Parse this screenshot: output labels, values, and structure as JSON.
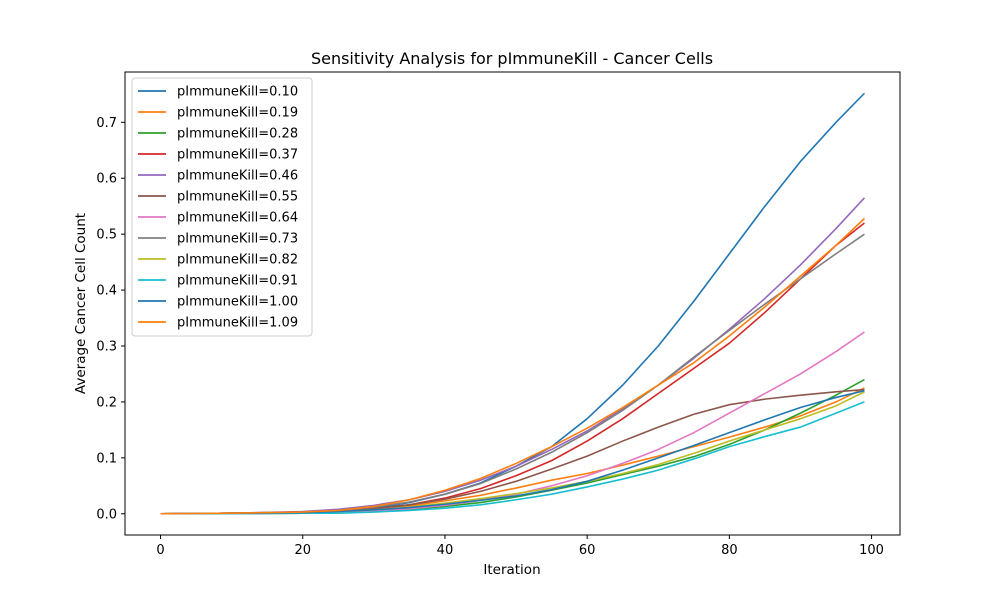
{
  "chart_data": {
    "type": "line",
    "title": "Sensitivity Analysis for pImmuneKill - Cancer Cells",
    "xlabel": "Iteration",
    "ylabel": "Average Cancer Cell Count",
    "xlim": [
      -5,
      104
    ],
    "ylim": [
      -0.038,
      0.79
    ],
    "xticks": [
      0,
      20,
      40,
      60,
      80,
      100
    ],
    "yticks": [
      0.0,
      0.1,
      0.2,
      0.3,
      0.4,
      0.5,
      0.6,
      0.7
    ],
    "grid": false,
    "legend_position": "top-left",
    "x": [
      0,
      10,
      20,
      25,
      30,
      35,
      40,
      45,
      50,
      55,
      60,
      65,
      70,
      75,
      80,
      85,
      90,
      95,
      99
    ],
    "series": [
      {
        "name": "pImmuneKill=0.10",
        "color": "#1f77b4",
        "values": [
          0,
          0.001,
          0.002,
          0.004,
          0.01,
          0.02,
          0.035,
          0.055,
          0.085,
          0.12,
          0.17,
          0.23,
          0.3,
          0.38,
          0.465,
          0.55,
          0.63,
          0.7,
          0.752
        ]
      },
      {
        "name": "pImmuneKill=0.19",
        "color": "#ff7f0e",
        "values": [
          0,
          0.001,
          0.002,
          0.004,
          0.008,
          0.014,
          0.023,
          0.033,
          0.046,
          0.06,
          0.072,
          0.087,
          0.103,
          0.12,
          0.137,
          0.155,
          0.175,
          0.2,
          0.225
        ]
      },
      {
        "name": "pImmuneKill=0.28",
        "color": "#2ca02c",
        "values": [
          0,
          0.0,
          0.001,
          0.002,
          0.004,
          0.008,
          0.013,
          0.02,
          0.03,
          0.042,
          0.055,
          0.07,
          0.085,
          0.102,
          0.124,
          0.15,
          0.18,
          0.212,
          0.24
        ]
      },
      {
        "name": "pImmuneKill=0.37",
        "color": "#d62728",
        "values": [
          0,
          0.001,
          0.002,
          0.004,
          0.009,
          0.016,
          0.028,
          0.045,
          0.068,
          0.095,
          0.13,
          0.17,
          0.215,
          0.26,
          0.305,
          0.36,
          0.42,
          0.48,
          0.52
        ]
      },
      {
        "name": "pImmuneKill=0.46",
        "color": "#9467bd",
        "values": [
          0,
          0.001,
          0.004,
          0.008,
          0.015,
          0.025,
          0.04,
          0.06,
          0.085,
          0.115,
          0.148,
          0.188,
          0.23,
          0.278,
          0.33,
          0.385,
          0.445,
          0.51,
          0.565
        ]
      },
      {
        "name": "pImmuneKill=0.55",
        "color": "#8c564b",
        "values": [
          0,
          0.001,
          0.002,
          0.004,
          0.009,
          0.016,
          0.026,
          0.04,
          0.058,
          0.08,
          0.103,
          0.13,
          0.155,
          0.178,
          0.195,
          0.205,
          0.212,
          0.218,
          0.222
        ]
      },
      {
        "name": "pImmuneKill=0.64",
        "color": "#e377c2",
        "values": [
          0,
          0.0,
          0.001,
          0.002,
          0.005,
          0.009,
          0.015,
          0.024,
          0.035,
          0.05,
          0.068,
          0.09,
          0.115,
          0.145,
          0.18,
          0.215,
          0.25,
          0.29,
          0.325
        ]
      },
      {
        "name": "pImmuneKill=0.73",
        "color": "#7f7f7f",
        "values": [
          0,
          0.001,
          0.003,
          0.006,
          0.012,
          0.021,
          0.035,
          0.054,
          0.08,
          0.11,
          0.145,
          0.185,
          0.23,
          0.28,
          0.328,
          0.375,
          0.42,
          0.465,
          0.5
        ]
      },
      {
        "name": "pImmuneKill=0.82",
        "color": "#bcbd22",
        "values": [
          0,
          0.001,
          0.002,
          0.004,
          0.007,
          0.012,
          0.019,
          0.027,
          0.036,
          0.046,
          0.058,
          0.072,
          0.088,
          0.108,
          0.13,
          0.15,
          0.17,
          0.193,
          0.218
        ]
      },
      {
        "name": "pImmuneKill=0.91",
        "color": "#17becf",
        "values": [
          0,
          0.0,
          0.001,
          0.001,
          0.003,
          0.006,
          0.01,
          0.016,
          0.025,
          0.035,
          0.048,
          0.062,
          0.078,
          0.098,
          0.12,
          0.138,
          0.155,
          0.18,
          0.2
        ]
      },
      {
        "name": "pImmuneKill=1.00",
        "color": "#1f77b4",
        "values": [
          0,
          0.001,
          0.002,
          0.004,
          0.007,
          0.011,
          0.017,
          0.024,
          0.032,
          0.043,
          0.058,
          0.078,
          0.1,
          0.122,
          0.145,
          0.168,
          0.19,
          0.208,
          0.22
        ]
      },
      {
        "name": "pImmuneKill=1.09",
        "color": "#ff7f0e",
        "values": [
          0,
          0.001,
          0.003,
          0.006,
          0.013,
          0.025,
          0.042,
          0.063,
          0.09,
          0.12,
          0.153,
          0.19,
          0.23,
          0.27,
          0.318,
          0.37,
          0.425,
          0.48,
          0.528
        ]
      }
    ]
  }
}
